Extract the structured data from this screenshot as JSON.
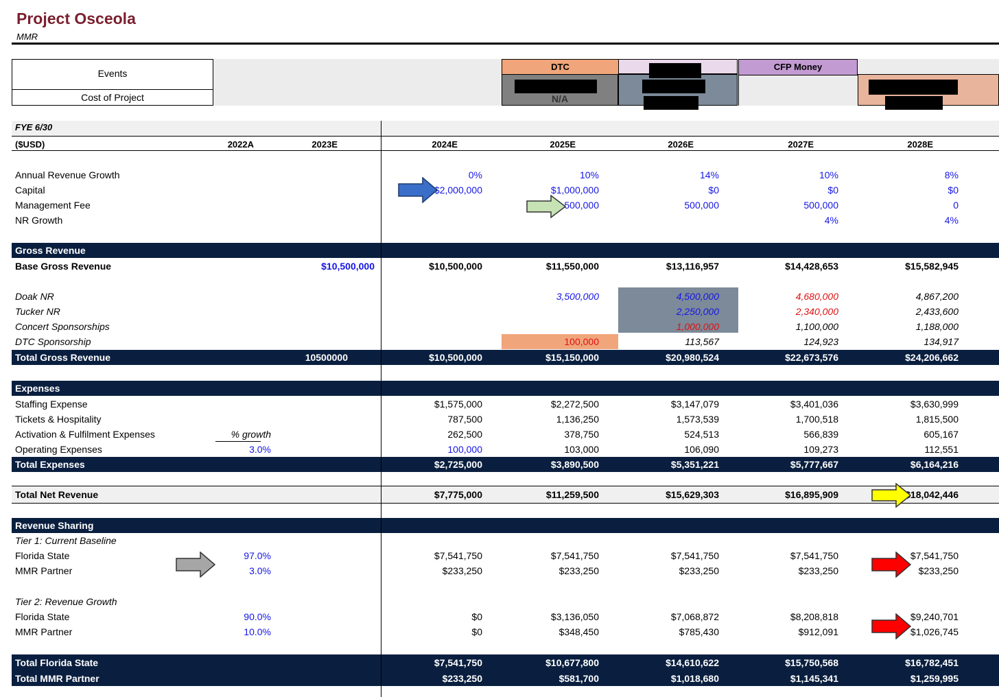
{
  "header": {
    "title": "Project Osceola",
    "subtitle": "MMR"
  },
  "events_box": {
    "events_label": "Events",
    "cost_label": "Cost of Project"
  },
  "top_columns": {
    "dtc_label": "DTC",
    "dtc_value": "N/A",
    "cfp_label": "CFP Money"
  },
  "table": {
    "fye_label": "FYE 6/30",
    "units_label": "($USD)",
    "years": [
      "2022A",
      "2023E",
      "2024E",
      "2025E",
      "2026E",
      "2027E",
      "2028E"
    ],
    "assumptions": [
      {
        "label": "Annual Revenue Growth",
        "values": [
          "0%",
          "10%",
          "14%",
          "10%",
          "8%"
        ]
      },
      {
        "label": "Capital",
        "values": [
          "$2,000,000",
          "$1,000,000",
          "$0",
          "$0",
          "$0"
        ]
      },
      {
        "label": "Management Fee",
        "values": [
          "",
          "500,000",
          "500,000",
          "500,000",
          "0"
        ]
      },
      {
        "label": "NR Growth",
        "values": [
          "",
          "",
          "",
          "4%",
          "4%"
        ]
      }
    ],
    "gross_revenue": {
      "section_label": "Gross Revenue",
      "base": {
        "label": "Base Gross Revenue",
        "y2023": "$10,500,000",
        "values": [
          "$10,500,000",
          "$11,550,000",
          "$13,116,957",
          "$14,428,653",
          "$15,582,945"
        ]
      },
      "items": [
        {
          "label": "Doak NR",
          "values": [
            "",
            "3,500,000",
            "4,500,000",
            "4,680,000",
            "4,867,200"
          ]
        },
        {
          "label": "Tucker NR",
          "values": [
            "",
            "",
            "2,250,000",
            "2,340,000",
            "2,433,600"
          ]
        },
        {
          "label": "Concert Sponsorships",
          "values": [
            "",
            "",
            "1,000,000",
            "1,100,000",
            "1,188,000"
          ]
        },
        {
          "label": "DTC Sponsorship",
          "values": [
            "",
            "100,000",
            "113,567",
            "124,923",
            "134,917"
          ]
        }
      ],
      "total": {
        "label": "Total Gross Revenue",
        "y2023": "10500000",
        "values": [
          "$10,500,000",
          "$15,150,000",
          "$20,980,524",
          "$22,673,576",
          "$24,206,662"
        ]
      }
    },
    "expenses": {
      "section_label": "Expenses",
      "items": [
        {
          "label": "Staffing Expense",
          "values": [
            "$1,575,000",
            "$2,272,500",
            "$3,147,079",
            "$3,401,036",
            "$3,630,999"
          ]
        },
        {
          "label": "Tickets & Hospitality",
          "values": [
            "787,500",
            "1,136,250",
            "1,573,539",
            "1,700,518",
            "1,815,500"
          ]
        },
        {
          "label": "Activation & Fulfilment Expenses",
          "note": "% growth",
          "values": [
            "262,500",
            "378,750",
            "524,513",
            "566,839",
            "605,167"
          ]
        },
        {
          "label": "Operating Expenses",
          "note": "3.0%",
          "values": [
            "100,000",
            "103,000",
            "106,090",
            "109,273",
            "112,551"
          ]
        }
      ],
      "total": {
        "label": "Total Expenses",
        "values": [
          "$2,725,000",
          "$3,890,500",
          "$5,351,221",
          "$5,777,667",
          "$6,164,216"
        ]
      }
    },
    "net_revenue": {
      "label": "Total Net Revenue",
      "values": [
        "$7,775,000",
        "$11,259,500",
        "$15,629,303",
        "$16,895,909",
        "$18,042,446"
      ]
    },
    "revenue_sharing": {
      "section_label": "Revenue Sharing",
      "tier1_label": "Tier 1: Current Baseline",
      "tier1": [
        {
          "label": "Florida State",
          "pct": "97.0%",
          "values": [
            "$7,541,750",
            "$7,541,750",
            "$7,541,750",
            "$7,541,750",
            "$7,541,750"
          ]
        },
        {
          "label": "MMR Partner",
          "pct": "3.0%",
          "values": [
            "$233,250",
            "$233,250",
            "$233,250",
            "$233,250",
            "$233,250"
          ]
        }
      ],
      "tier2_label": "Tier 2: Revenue Growth",
      "tier2": [
        {
          "label": "Florida State",
          "pct": "90.0%",
          "values": [
            "$0",
            "$3,136,050",
            "$7,068,872",
            "$8,208,818",
            "$9,240,701"
          ]
        },
        {
          "label": "MMR Partner",
          "pct": "10.0%",
          "values": [
            "$0",
            "$348,450",
            "$785,430",
            "$912,091",
            "$1,026,745"
          ]
        }
      ],
      "totals": [
        {
          "label": "Total Florida State",
          "values": [
            "$7,541,750",
            "$10,677,800",
            "$14,610,622",
            "$15,750,568",
            "$16,782,451"
          ]
        },
        {
          "label": "Total MMR Partner",
          "values": [
            "$233,250",
            "$581,700",
            "$1,018,680",
            "$1,145,341",
            "$1,259,995"
          ]
        }
      ]
    }
  },
  "colors": {
    "dark_band": "#0a1f3f",
    "title": "#7b1f2e",
    "blue_input": "#1515e6",
    "red": "#e01010",
    "dtc_orange": "#f0a57a",
    "cfp_purple": "#c39bd3",
    "grey_cell": "#7c8a99"
  },
  "annotations": [
    "blue-arrow",
    "green-arrow",
    "yellow-arrow",
    "gray-arrow",
    "red-arrow",
    "red-arrow"
  ]
}
